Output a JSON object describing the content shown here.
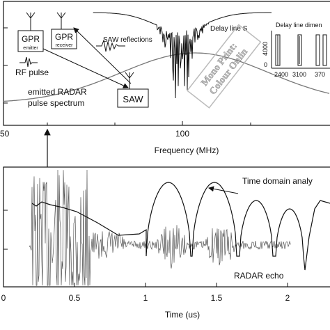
{
  "chart_data": [
    {
      "type": "line",
      "xlabel": "Frequency (MHz)",
      "xticks": [
        "50",
        "100"
      ],
      "series": [
        {
          "name": "Delay line S",
          "shape": "attenuation notches near 100 MHz"
        },
        {
          "name": "emitted RADAR pulse spectrum",
          "shape": "broad hump"
        }
      ]
    },
    {
      "type": "line",
      "xlabel": "Time (us)",
      "xticks": [
        "0",
        "0.5",
        "1",
        "1.5",
        "2"
      ],
      "series": [
        {
          "name": "Time domain analy",
          "shape": "periodic arches"
        },
        {
          "name": "RADAR echo",
          "shape": "burst echoes"
        }
      ]
    }
  ],
  "annotations": {
    "gpr_emitter": {
      "main": "GPR",
      "sub": "emitter"
    },
    "gpr_receiver": {
      "main": "GPR",
      "sub": "receiver"
    },
    "rf_pulse": "RF pulse",
    "spectrum_label_1": "emitted RADAR",
    "spectrum_label_2": "pulse spectrum",
    "saw_box": "SAW",
    "saw_reflections": "SAW reflections",
    "delay_line": "Delay line S",
    "inset_title": "Delay line dimen",
    "inset_yticks": [
      "4000",
      "0"
    ],
    "inset_xticks": [
      "2400",
      "3100",
      "370"
    ],
    "time_domain": "Time domain analy",
    "radar_echo": "RADAR echo"
  },
  "watermark": {
    "line1": "Mono Print:",
    "line2": "Colour Onlin"
  },
  "colors": {
    "line": "#111111",
    "spectrum": "#777777",
    "echo": "#555555"
  }
}
